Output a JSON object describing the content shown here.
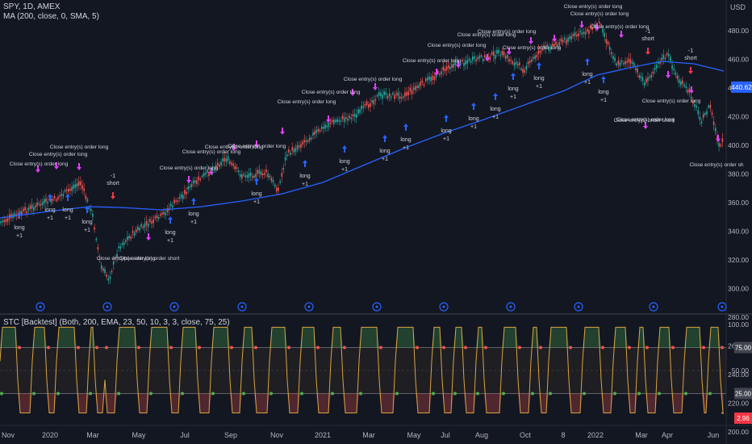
{
  "symbol_legend": "SPY, 1D, AMEX",
  "ma_legend": "MA (200, close, 0, SMA, 5)",
  "stc_legend": "STC [Backtest] (Both, 200, EMA, 23, 50, 10, 3, 3, close, 75, 25)",
  "price_axis": {
    "ticks": [
      "480.00",
      "460.00",
      "440.00",
      "420.00",
      "400.00",
      "380.00",
      "360.00",
      "340.00",
      "320.00",
      "300.00",
      "280.00",
      "260.00",
      "240.00",
      "220.00",
      "200.00"
    ],
    "top_label": "USD",
    "current_price": "440.62",
    "current_price_color": "#2962ff"
  },
  "stc_axis": {
    "ticks": [
      "100.00",
      "50.00",
      "0.00"
    ],
    "upper_badge": "75.00",
    "lower_badge": "25.00",
    "value_badge": "2.96",
    "value_badge_color": "#f23645"
  },
  "time_axis": [
    "Nov",
    "2020",
    "Mar",
    "May",
    "Jul",
    "Sep",
    "Nov",
    "2021",
    "Mar",
    "May",
    "Jul",
    "Aug",
    "Oct",
    "8",
    "2022",
    "Mar",
    "Apr",
    "Jun"
  ],
  "chart_data": {
    "type": "line",
    "series": [],
    "stc_levels": [
      75,
      25
    ],
    "price_ylim": [
      200,
      490
    ],
    "stc_ylim": [
      0,
      100
    ]
  },
  "trade_labels": {
    "long": "long",
    "short": "short",
    "plus_one": "+1",
    "minus_one": "-1",
    "close_long": "Close entry(s) order long",
    "close_short": "Close entry(s) order short",
    "close_short_cut": "Close entry(s) order sh"
  },
  "colors": {
    "up": "#26a69a",
    "down": "#ef5350",
    "ma": "#2962ff",
    "long_arrow": "#2962ff",
    "short_arrow": "#f23645",
    "close_arrow": "#e040fb",
    "stc_green": "#4caf50",
    "stc_red": "#ef5350"
  }
}
